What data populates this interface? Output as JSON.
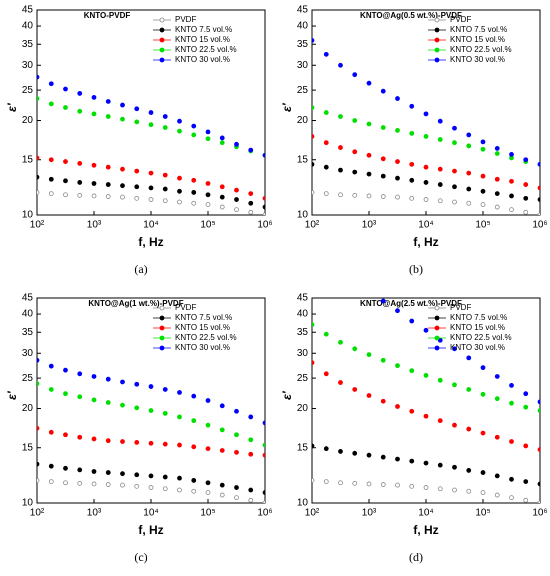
{
  "chart_data": [
    {
      "type": "scatter",
      "title": "KNTO-PVDF",
      "panel_label": "(a)",
      "x_label": "f, Hz",
      "y_label": "ε′",
      "log_x": true,
      "log_y": true,
      "legend": "upper right",
      "x": [
        100,
        178,
        316,
        562,
        1000,
        1778,
        3162,
        5623,
        10000,
        17783,
        31623,
        56234,
        100000,
        177828,
        316228,
        562341,
        1000000
      ],
      "xlim": [
        100,
        1000000
      ],
      "xticks": [
        {
          "value": 100,
          "label": "10²"
        },
        {
          "value": 1000,
          "label": "10³"
        },
        {
          "value": 10000,
          "label": "10⁴"
        },
        {
          "value": 100000,
          "label": "10⁵"
        },
        {
          "value": 1000000,
          "label": "10⁶"
        }
      ],
      "ylim": [
        10,
        45
      ],
      "yticks": [
        10,
        15,
        20,
        25,
        30,
        35,
        40,
        45
      ],
      "series": [
        {
          "name": "PVDF",
          "color": "#888888",
          "values": [
            11.8,
            11.7,
            11.6,
            11.55,
            11.5,
            11.45,
            11.4,
            11.3,
            11.2,
            11.1,
            11.0,
            10.9,
            10.8,
            10.6,
            10.4,
            10.2,
            10.0
          ]
        },
        {
          "name": "KNTO 7.5 vol.%",
          "color": "#000000",
          "values": [
            13.2,
            13.0,
            12.85,
            12.7,
            12.6,
            12.5,
            12.4,
            12.3,
            12.2,
            12.1,
            11.9,
            11.8,
            11.6,
            11.4,
            11.2,
            10.9,
            10.6
          ]
        },
        {
          "name": "KNTO 15 vol.%",
          "color": "#ff0000",
          "values": [
            15.2,
            15.0,
            14.8,
            14.6,
            14.4,
            14.2,
            14.0,
            13.8,
            13.6,
            13.4,
            13.1,
            12.9,
            12.6,
            12.3,
            12.0,
            11.7,
            11.3
          ]
        },
        {
          "name": "KNTO 22.5 vol.%",
          "color": "#00e000",
          "values": [
            23.5,
            22.6,
            22.0,
            21.4,
            21.0,
            20.6,
            20.2,
            19.8,
            19.4,
            19.0,
            18.5,
            18.0,
            17.5,
            17.0,
            16.5,
            16.0,
            15.5
          ]
        },
        {
          "name": "KNTO 30 vol.%",
          "color": "#0000ff",
          "values": [
            27.5,
            26.2,
            25.2,
            24.4,
            23.7,
            23.0,
            22.4,
            21.8,
            21.2,
            20.6,
            19.9,
            19.2,
            18.4,
            17.6,
            16.8,
            16.1,
            15.5
          ]
        }
      ]
    },
    {
      "type": "scatter",
      "title": "KNTO@Ag(0.5 wt.%)-PVDF",
      "panel_label": "(b)",
      "x_label": "f, Hz",
      "y_label": "ε′",
      "log_x": true,
      "log_y": true,
      "legend": "upper right",
      "x": [
        100,
        178,
        316,
        562,
        1000,
        1778,
        3162,
        5623,
        10000,
        17783,
        31623,
        56234,
        100000,
        177828,
        316228,
        562341,
        1000000
      ],
      "xlim": [
        100,
        1000000
      ],
      "xticks": [
        {
          "value": 100,
          "label": "10²"
        },
        {
          "value": 1000,
          "label": "10³"
        },
        {
          "value": 10000,
          "label": "10⁴"
        },
        {
          "value": 100000,
          "label": "10⁵"
        },
        {
          "value": 1000000,
          "label": "10⁶"
        }
      ],
      "ylim": [
        10,
        45
      ],
      "yticks": [
        10,
        15,
        20,
        25,
        30,
        35,
        40,
        45
      ],
      "series": [
        {
          "name": "PVDF",
          "color": "#888888",
          "values": [
            11.8,
            11.7,
            11.6,
            11.55,
            11.5,
            11.45,
            11.4,
            11.3,
            11.2,
            11.1,
            11.0,
            10.9,
            10.8,
            10.6,
            10.4,
            10.2,
            10.0
          ]
        },
        {
          "name": "KNTO 7.5 vol.%",
          "color": "#000000",
          "values": [
            14.5,
            14.2,
            13.9,
            13.7,
            13.5,
            13.3,
            13.1,
            12.9,
            12.7,
            12.5,
            12.3,
            12.1,
            11.9,
            11.7,
            11.5,
            11.3,
            11.2
          ]
        },
        {
          "name": "KNTO 15 vol.%",
          "color": "#ff0000",
          "values": [
            17.8,
            17.0,
            16.4,
            15.9,
            15.5,
            15.1,
            14.8,
            14.5,
            14.2,
            14.0,
            13.8,
            13.6,
            13.3,
            13.0,
            12.8,
            12.5,
            12.2
          ]
        },
        {
          "name": "KNTO 22.5 vol.%",
          "color": "#00e000",
          "values": [
            22.0,
            21.2,
            20.6,
            20.0,
            19.5,
            19.0,
            18.6,
            18.2,
            17.8,
            17.4,
            17.0,
            16.6,
            16.2,
            15.7,
            15.2,
            14.8,
            14.5
          ]
        },
        {
          "name": "KNTO 30 vol.%",
          "color": "#0000ff",
          "values": [
            36,
            32.5,
            30,
            28,
            26.3,
            24.8,
            23.5,
            22.2,
            21.0,
            19.9,
            18.9,
            18.0,
            17.1,
            16.3,
            15.6,
            15.0,
            14.5
          ]
        }
      ]
    },
    {
      "type": "scatter",
      "title": "KNTO@Ag(1 wt.%)-PVDF",
      "panel_label": "(c)",
      "x_label": "f, Hz",
      "y_label": "ε′",
      "log_x": true,
      "log_y": true,
      "legend": "upper right",
      "x": [
        100,
        178,
        316,
        562,
        1000,
        1778,
        3162,
        5623,
        10000,
        17783,
        31623,
        56234,
        100000,
        177828,
        316228,
        562341,
        1000000
      ],
      "xlim": [
        100,
        1000000
      ],
      "xticks": [
        {
          "value": 100,
          "label": "10²"
        },
        {
          "value": 1000,
          "label": "10³"
        },
        {
          "value": 10000,
          "label": "10⁴"
        },
        {
          "value": 100000,
          "label": "10⁵"
        },
        {
          "value": 1000000,
          "label": "10⁶"
        }
      ],
      "ylim": [
        10,
        45
      ],
      "yticks": [
        10,
        15,
        20,
        25,
        30,
        35,
        40,
        45
      ],
      "series": [
        {
          "name": "PVDF",
          "color": "#888888",
          "values": [
            11.8,
            11.7,
            11.6,
            11.55,
            11.5,
            11.45,
            11.4,
            11.3,
            11.2,
            11.1,
            11.0,
            10.9,
            10.8,
            10.6,
            10.4,
            10.2,
            10.0
          ]
        },
        {
          "name": "KNTO 7.5 vol.%",
          "color": "#000000",
          "values": [
            13.3,
            13.1,
            12.9,
            12.75,
            12.6,
            12.5,
            12.4,
            12.3,
            12.2,
            12.1,
            12.0,
            11.8,
            11.6,
            11.4,
            11.2,
            11.0,
            10.8
          ]
        },
        {
          "name": "KNTO 15 vol.%",
          "color": "#ff0000",
          "values": [
            17.3,
            16.8,
            16.5,
            16.2,
            16.0,
            15.8,
            15.7,
            15.6,
            15.5,
            15.4,
            15.3,
            15.1,
            14.9,
            14.7,
            14.5,
            14.3,
            14.2
          ]
        },
        {
          "name": "KNTO 22.5 vol.%",
          "color": "#00e000",
          "values": [
            24.0,
            23.0,
            22.3,
            21.8,
            21.3,
            20.9,
            20.5,
            20.1,
            19.7,
            19.3,
            18.8,
            18.3,
            17.7,
            17.1,
            16.5,
            15.9,
            15.3
          ]
        },
        {
          "name": "KNTO 30 vol.%",
          "color": "#0000ff",
          "values": [
            28.5,
            27.3,
            26.5,
            25.8,
            25.3,
            24.8,
            24.3,
            23.9,
            23.5,
            23.0,
            22.5,
            21.9,
            21.2,
            20.4,
            19.6,
            18.8,
            18.0
          ]
        }
      ]
    },
    {
      "type": "scatter",
      "title": "KNTO@Ag(2.5 wt.%)-PVDF",
      "panel_label": "(d)",
      "x_label": "f, Hz",
      "y_label": "ε′",
      "log_x": true,
      "log_y": true,
      "legend": "upper right",
      "x": [
        100,
        178,
        316,
        562,
        1000,
        1778,
        3162,
        5623,
        10000,
        17783,
        31623,
        56234,
        100000,
        177828,
        316228,
        562341,
        1000000
      ],
      "xlim": [
        100,
        1000000
      ],
      "xticks": [
        {
          "value": 100,
          "label": "10²"
        },
        {
          "value": 1000,
          "label": "10³"
        },
        {
          "value": 10000,
          "label": "10⁴"
        },
        {
          "value": 100000,
          "label": "10⁵"
        },
        {
          "value": 1000000,
          "label": "10⁶"
        }
      ],
      "ylim": [
        10,
        45
      ],
      "yticks": [
        10,
        15,
        20,
        25,
        30,
        35,
        40,
        45
      ],
      "series": [
        {
          "name": "PVDF",
          "color": "#888888",
          "values": [
            11.8,
            11.7,
            11.6,
            11.55,
            11.5,
            11.45,
            11.4,
            11.3,
            11.2,
            11.1,
            11.0,
            10.9,
            10.8,
            10.6,
            10.4,
            10.2,
            10.0
          ]
        },
        {
          "name": "KNTO 7.5 vol.%",
          "color": "#000000",
          "values": [
            15.2,
            14.9,
            14.6,
            14.4,
            14.2,
            14.0,
            13.8,
            13.6,
            13.4,
            13.2,
            13.0,
            12.7,
            12.5,
            12.2,
            11.9,
            11.7,
            11.5
          ]
        },
        {
          "name": "KNTO 15 vol.%",
          "color": "#ff0000",
          "values": [
            28,
            25.8,
            24.2,
            23.0,
            22.0,
            21.1,
            20.3,
            19.6,
            18.9,
            18.3,
            17.7,
            17.2,
            16.7,
            16.2,
            15.7,
            15.2,
            14.8
          ]
        },
        {
          "name": "KNTO 22.5 vol.%",
          "color": "#00e000",
          "values": [
            37,
            34.5,
            32.5,
            31.0,
            29.7,
            28.5,
            27.4,
            26.4,
            25.5,
            24.6,
            23.8,
            23.0,
            22.2,
            21.5,
            20.8,
            20.2,
            19.7
          ]
        },
        {
          "name": "KNTO 30 vol.%",
          "color": "#0000ff",
          "values": [
            null,
            null,
            null,
            null,
            null,
            44,
            41,
            38,
            35.5,
            33,
            31,
            29,
            27,
            25.3,
            23.7,
            22.3,
            21
          ]
        }
      ]
    }
  ]
}
